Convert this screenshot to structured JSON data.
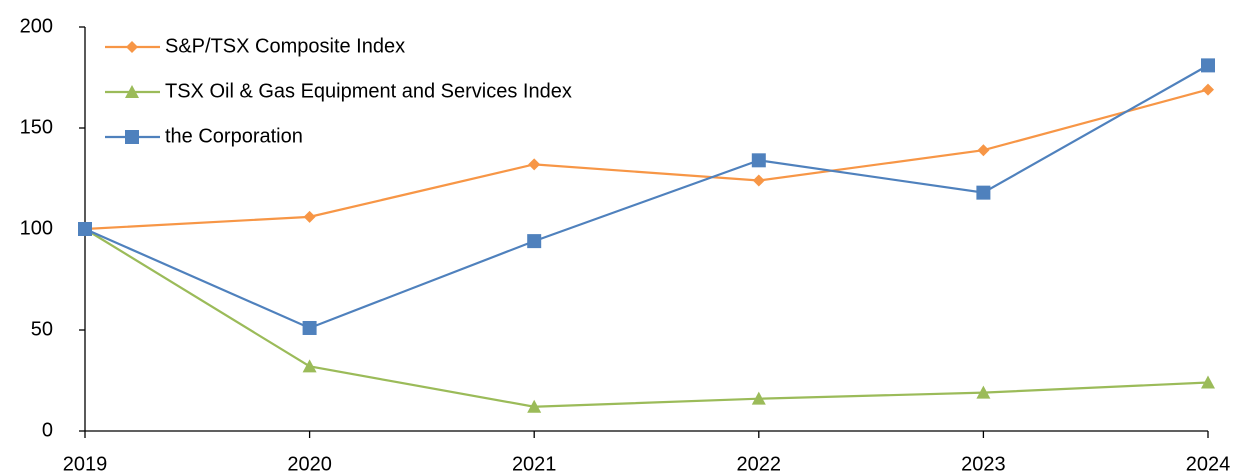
{
  "chart_data": {
    "type": "line",
    "categories": [
      "2019",
      "2020",
      "2021",
      "2022",
      "2023",
      "2024"
    ],
    "series": [
      {
        "name": "S&P/TSX Composite Index",
        "color": "#f79646",
        "marker": "diamond",
        "values": [
          100,
          106,
          132,
          124,
          139,
          169
        ]
      },
      {
        "name": "TSX Oil & Gas Equipment and Services Index",
        "color": "#9bbb59",
        "marker": "triangle",
        "values": [
          100,
          32,
          12,
          16,
          19,
          24
        ]
      },
      {
        "name": "the Corporation",
        "color": "#4f81bd",
        "marker": "square",
        "values": [
          100,
          51,
          94,
          134,
          118,
          181
        ]
      }
    ],
    "ylim": [
      0,
      200
    ],
    "yticks": [
      0,
      50,
      100,
      150,
      200
    ],
    "grid": false,
    "legend": "upper left"
  }
}
